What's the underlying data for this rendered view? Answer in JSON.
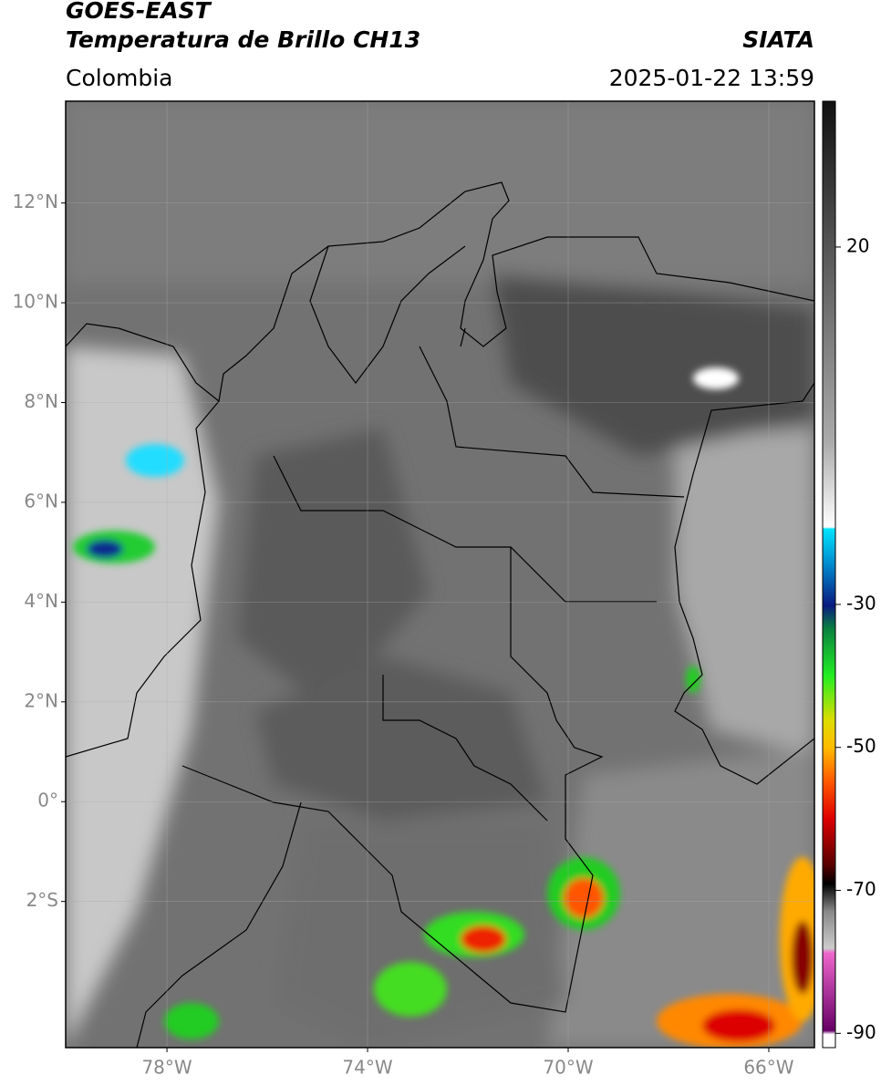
{
  "header": {
    "title": "GOES-EAST",
    "subtitle": "Temperatura de Brillo CH13",
    "source": "SIATA",
    "region": "Colombia",
    "datetime": "2025-01-22 13:59"
  },
  "map": {
    "latlim": [
      -4.93,
      14.04
    ],
    "lonlim": [
      -80.02,
      -65.09
    ],
    "grid": true,
    "lat_ticks": [
      {
        "value": 12,
        "label": "12°N"
      },
      {
        "value": 10,
        "label": "10°N"
      },
      {
        "value": 8,
        "label": "8°N"
      },
      {
        "value": 6,
        "label": "6°N"
      },
      {
        "value": 4,
        "label": "4°N"
      },
      {
        "value": 2,
        "label": "2°N"
      },
      {
        "value": 0,
        "label": "0°"
      },
      {
        "value": -2,
        "label": "2°S"
      }
    ],
    "lon_ticks": [
      {
        "value": -78,
        "label": "78°W"
      },
      {
        "value": -74,
        "label": "74°W"
      },
      {
        "value": -70,
        "label": "70°W"
      },
      {
        "value": -66,
        "label": "66°W"
      }
    ]
  },
  "colorbar": {
    "lim": [
      -92,
      40.4
    ],
    "ticks": [
      20,
      -30,
      -50,
      -70,
      -90
    ]
  }
}
